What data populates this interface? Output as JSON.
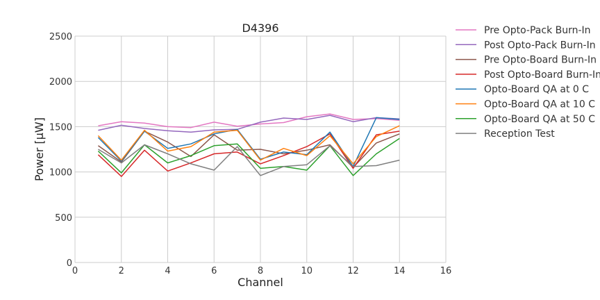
{
  "chart_data": {
    "type": "line",
    "title": "D4396",
    "xlabel": "Channel",
    "ylabel": "Power [μW]",
    "xlim": [
      0,
      16
    ],
    "ylim": [
      0,
      2500
    ],
    "xticks": [
      0,
      2,
      4,
      6,
      8,
      10,
      12,
      14,
      16
    ],
    "yticks": [
      0,
      500,
      1000,
      1500,
      2000,
      2500
    ],
    "grid": true,
    "legend_position": "outside-right",
    "x": [
      1,
      2,
      3,
      4,
      5,
      6,
      7,
      8,
      9,
      10,
      11,
      12,
      13,
      14
    ],
    "series": [
      {
        "name": "Pre Opto-Pack Burn-In",
        "color": "#e377c2",
        "values": [
          1510,
          1555,
          1540,
          1500,
          1490,
          1550,
          1505,
          1530,
          1545,
          1610,
          1640,
          1580,
          1590,
          1570
        ]
      },
      {
        "name": "Post Opto-Pack Burn-In",
        "color": "#9467bd",
        "values": [
          1460,
          1515,
          1480,
          1455,
          1440,
          1465,
          1470,
          1550,
          1595,
          1580,
          1625,
          1555,
          1600,
          1585
        ]
      },
      {
        "name": "Pre Opto-Board Burn-In",
        "color": "#8c564b",
        "values": [
          1290,
          1110,
          1450,
          1330,
          1170,
          1410,
          1240,
          1250,
          1200,
          1240,
          1300,
          1050,
          1320,
          1420
        ]
      },
      {
        "name": "Post Opto-Board Burn-In",
        "color": "#d62728",
        "values": [
          1190,
          950,
          1240,
          1010,
          1100,
          1200,
          1220,
          1090,
          1180,
          1280,
          1420,
          1040,
          1410,
          1450
        ]
      },
      {
        "name": "Opto-Board QA at 0 C",
        "color": "#1f77b4",
        "values": [
          1380,
          1120,
          1450,
          1260,
          1310,
          1420,
          1470,
          1140,
          1220,
          1190,
          1440,
          1060,
          1600,
          1580
        ]
      },
      {
        "name": "Opto-Board QA at 10 C",
        "color": "#ff7f0e",
        "values": [
          1400,
          1130,
          1460,
          1230,
          1280,
          1440,
          1460,
          1130,
          1260,
          1180,
          1400,
          1090,
          1390,
          1510
        ]
      },
      {
        "name": "Opto-Board QA at 50 C",
        "color": "#2ca02c",
        "values": [
          1230,
          990,
          1300,
          1100,
          1180,
          1290,
          1310,
          1040,
          1060,
          1020,
          1290,
          960,
          1200,
          1370
        ]
      },
      {
        "name": "Reception Test",
        "color": "#7f7f7f",
        "values": [
          1250,
          1100,
          1300,
          1200,
          1090,
          1020,
          1280,
          960,
          1060,
          1080,
          1290,
          1060,
          1070,
          1130
        ]
      }
    ]
  }
}
